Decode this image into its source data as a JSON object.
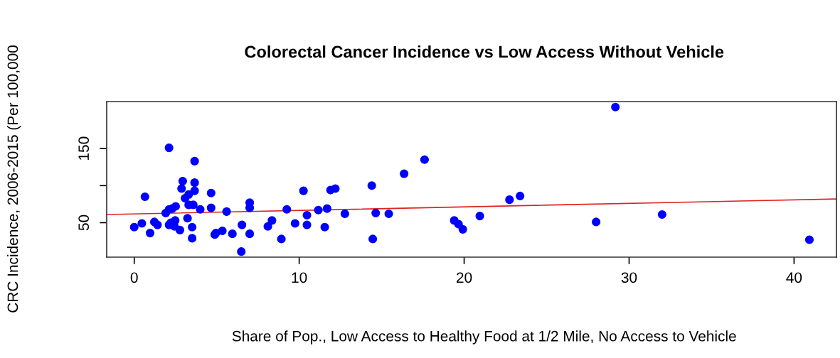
{
  "chart_data": {
    "type": "scatter",
    "title": "Colorectal Cancer Incidence vs Low Access Without Vehicle",
    "xlabel": "Share of Pop., Low Access to Healthy Food at 1/2 Mile, No Access to Vehicle",
    "ylabel": "CRC Incidence, 2006-2015 (Per 100,000",
    "xlim": [
      -1.67,
      42.57
    ],
    "ylim": [
      3.5,
      213.4
    ],
    "xticks": [
      0,
      10,
      20,
      30,
      40
    ],
    "yticks": [
      50,
      {
        "value": 100,
        "label": null
      },
      150
    ],
    "grid": false,
    "marker": "circle",
    "series": [
      {
        "color": "#0000ff",
        "x": [
          0.0,
          0.46,
          0.65,
          0.96,
          1.22,
          1.41,
          2.11,
          1.91,
          2.11,
          2.3,
          2.51,
          2.11,
          2.22,
          2.44,
          2.77,
          2.48,
          2.94,
          2.87,
          3.08,
          3.3,
          3.66,
          3.66,
          3.66,
          3.23,
          3.3,
          3.58,
          4.0,
          3.51,
          3.51,
          4.66,
          4.66,
          4.88,
          4.95,
          5.34,
          5.6,
          5.95,
          6.49,
          6.53,
          7.0,
          7.0,
          7.0,
          8.1,
          8.35,
          8.92,
          9.25,
          9.75,
          10.26,
          10.47,
          10.47,
          11.16,
          11.69,
          11.55,
          11.9,
          12.19,
          12.77,
          14.4,
          14.64,
          14.46,
          15.43,
          16.36,
          17.6,
          19.4,
          19.66,
          19.92,
          20.95,
          22.75,
          23.39,
          29.17,
          28.0,
          32.0,
          40.93
        ],
        "values": [
          44,
          49,
          85,
          36,
          51,
          47,
          151,
          63,
          68,
          69,
          72,
          47,
          50,
          45,
          40,
          53,
          106,
          96,
          83,
          88,
          93,
          133,
          104,
          56,
          74,
          74,
          68,
          44,
          29,
          90,
          70,
          34,
          36,
          39,
          65,
          35,
          11,
          47,
          77,
          70,
          35,
          45,
          53,
          28,
          68,
          49,
          93,
          60,
          47,
          67,
          69,
          44,
          94,
          96,
          62,
          100,
          63,
          28,
          62,
          116,
          135,
          53,
          48,
          41,
          59,
          81,
          86,
          206,
          51,
          61,
          27
        ]
      },
      {
        "type": "line",
        "color": "#dd2222",
        "x": [
          -1.67,
          42.57
        ],
        "values": [
          61,
          82
        ],
        "marker": "none"
      }
    ]
  }
}
